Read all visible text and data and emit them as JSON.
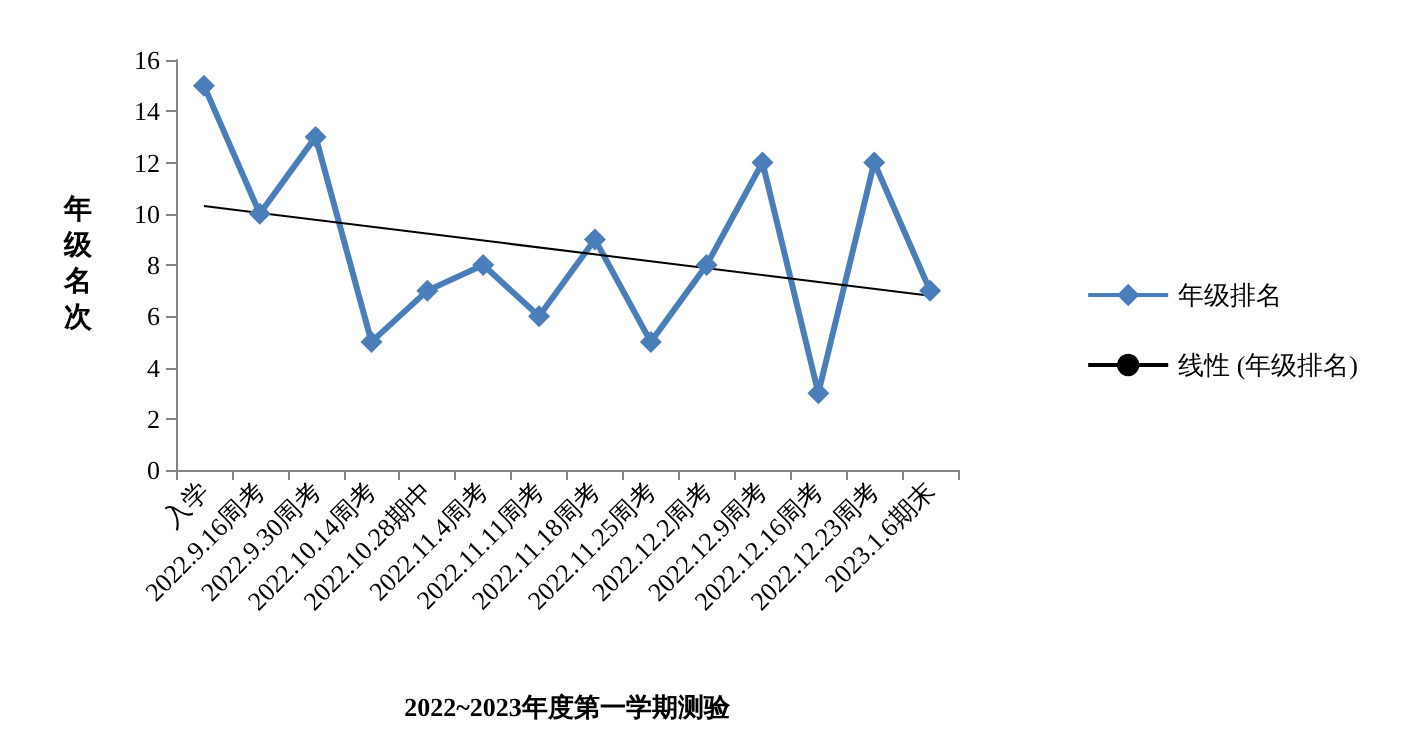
{
  "chart_data": {
    "type": "line",
    "xlabel": "2022~2023年度第一学期测验",
    "ylabel": "年级名次",
    "categories": [
      "入学",
      "2022.9.16周考",
      "2022.9.30周考",
      "2022.10.14周考",
      "2022.10.28期中",
      "2022.11.4周考",
      "2022.11.11周考",
      "2022.11.18周考",
      "2022.11.25周考",
      "2022.12.2周考",
      "2022.12.9周考",
      "2022.12.16周考",
      "2022.12.23周考",
      "2023.1.6期末"
    ],
    "series": [
      {
        "name": "年级排名",
        "color": "#4a7ebb",
        "marker": "diamond",
        "values": [
          15,
          10,
          13,
          5,
          7,
          8,
          6,
          9,
          5,
          8,
          12,
          3,
          12,
          7
        ]
      },
      {
        "name": "线性 (年级排名)",
        "color": "#000000",
        "marker": "none",
        "x": [
          "入学",
          "2023.1.6期末"
        ],
        "values": [
          10.3,
          6.8
        ]
      }
    ],
    "ylim": [
      0,
      16
    ],
    "yticks": [
      0,
      2,
      4,
      6,
      8,
      10,
      12,
      14,
      16
    ],
    "grid": false,
    "legend": "right"
  }
}
